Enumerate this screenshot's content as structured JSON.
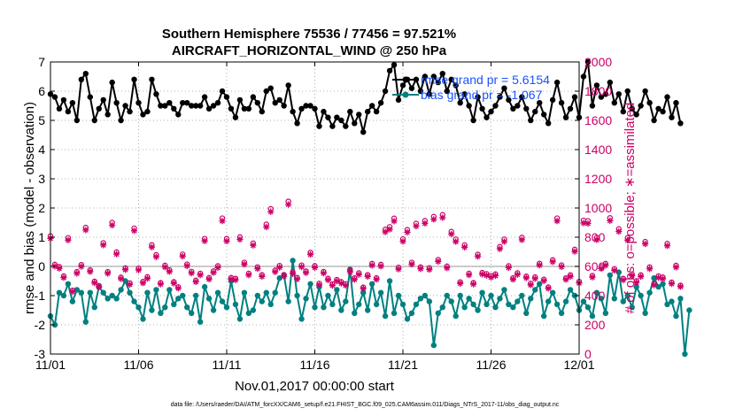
{
  "chart_data": {
    "type": "line",
    "title_line1": "Southern Hemisphere 75536 / 77456 = 97.521%",
    "title_line2": "AIRCRAFT_HORIZONTAL_WIND @ 250 hPa",
    "xlabel": "Nov.01,2017 00:00:00 start",
    "ylabel_left": "rmse and bias (model - observation)",
    "ylabel_right": "# of obs: o=possible; ∗=assimilated",
    "footer": "data file: /Users/raeder/DAI/ATM_forcXX/CAM6_setup/f.e21.FHIST_BGC.f09_025.CAM6assim.011/Diags_NTrS_2017-11/obs_diag_output.nc",
    "x_tick_labels": [
      "11/01",
      "11/06",
      "11/11",
      "11/16",
      "11/21",
      "11/26",
      "12/01"
    ],
    "x_tick_days": [
      0,
      5,
      10,
      15,
      20,
      25,
      30
    ],
    "xlim_days": [
      0,
      30
    ],
    "ylim_left": [
      -3,
      7
    ],
    "yticks_left": [
      "-3",
      "-2",
      "-1",
      "0",
      "1",
      "2",
      "3",
      "4",
      "5",
      "6",
      "7"
    ],
    "ylim_right": [
      0,
      2000
    ],
    "yticks_right": [
      "0",
      "200",
      "400",
      "600",
      "800",
      "1000",
      "1200",
      "1400",
      "1600",
      "1800",
      "2000"
    ],
    "time_step_days": 0.25,
    "legend": [
      {
        "label": "rmse grand pr = 5.6154",
        "color": "#000000"
      },
      {
        "label": "bias grand pr = -1.067",
        "color": "#008080"
      }
    ],
    "series": [
      {
        "name": "rmse",
        "color": "#000000",
        "axis": "left",
        "values": [
          5.9,
          5.8,
          5.4,
          5.7,
          5.3,
          5.6,
          5.0,
          6.4,
          6.6,
          5.8,
          5.0,
          5.4,
          5.7,
          5.2,
          6.3,
          5.6,
          5.0,
          5.5,
          5.3,
          6.4,
          5.6,
          5.2,
          5.3,
          6.4,
          5.9,
          5.5,
          5.5,
          5.6,
          5.4,
          5.2,
          5.6,
          5.6,
          5.5,
          5.5,
          5.5,
          5.8,
          5.4,
          5.5,
          5.6,
          6.0,
          5.8,
          5.4,
          5.1,
          5.7,
          5.4,
          5.4,
          5.8,
          5.6,
          5.3,
          6.0,
          6.1,
          5.6,
          5.7,
          5.5,
          6.2,
          5.3,
          4.9,
          5.4,
          5.5,
          5.5,
          5.4,
          4.8,
          5.3,
          5.1,
          4.8,
          5.1,
          5.0,
          4.8,
          5.3,
          4.9,
          5.2,
          4.6,
          5.3,
          5.5,
          5.3,
          5.6,
          6.0,
          6.7,
          6.9,
          5.7,
          6.2,
          6.4,
          6.1,
          6.4,
          6.0,
          6.5,
          5.9,
          6.5,
          6.3,
          6.6,
          6.0,
          6.4,
          6.2,
          5.6,
          5.9,
          5.5,
          5.0,
          5.8,
          5.4,
          5.1,
          5.3,
          5.5,
          5.8,
          6.1,
          5.7,
          5.4,
          5.5,
          5.8,
          5.4,
          5.0,
          5.3,
          5.6,
          5.2,
          4.9,
          5.7,
          6.3,
          5.6,
          5.1,
          5.4,
          5.8,
          5.1,
          6.5,
          7.0,
          5.5,
          6.2,
          5.8,
          5.9,
          6.3,
          5.6,
          5.9,
          5.3,
          6.0,
          5.4,
          5.2,
          5.5,
          6.0,
          5.6,
          5.0,
          5.4,
          5.3,
          5.8,
          5.1,
          5.6,
          4.9
        ]
      },
      {
        "name": "bias",
        "color": "#008080",
        "axis": "left",
        "values": [
          -1.7,
          -2.0,
          -0.9,
          -1.0,
          -0.6,
          -1.2,
          -0.8,
          -0.9,
          -1.9,
          -0.9,
          -1.4,
          -0.7,
          -0.9,
          -1.1,
          -1.0,
          -1.1,
          -0.8,
          -0.5,
          -0.9,
          -1.2,
          -1.4,
          -1.8,
          -0.9,
          -1.5,
          -0.8,
          -1.6,
          -1.4,
          -0.8,
          -1.3,
          -1.1,
          -1.0,
          -1.4,
          -1.6,
          -1.0,
          -1.9,
          -0.7,
          -1.1,
          -1.5,
          -0.9,
          -1.2,
          -1.4,
          -0.5,
          -1.3,
          -1.8,
          -0.9,
          -1.6,
          -1.5,
          -1.0,
          -1.2,
          -0.9,
          -1.3,
          -0.9,
          -0.4,
          -0.3,
          -1.2,
          0.2,
          -1.0,
          -1.8,
          -1.1,
          -0.6,
          -1.4,
          -0.7,
          -1.4,
          -1.0,
          -1.3,
          -0.8,
          -1.5,
          -1.2,
          -0.1,
          -1.6,
          -1.3,
          -0.9,
          -1.5,
          -0.6,
          -1.3,
          -0.9,
          -1.7,
          -0.5,
          -1.6,
          -1.0,
          -1.3,
          -1.8,
          -1.6,
          -1.3,
          -1.1,
          -1.0,
          -1.2,
          -2.7,
          -1.6,
          -1.4,
          -1.0,
          -1.2,
          -1.7,
          -1.0,
          -1.4,
          -1.1,
          -1.3,
          -1.5,
          -0.9,
          -1.3,
          -1.0,
          -1.4,
          -1.1,
          -0.8,
          -1.3,
          -1.4,
          -1.2,
          -1.0,
          -1.6,
          -1.1,
          -0.8,
          -0.6,
          -1.7,
          -1.2,
          -0.9,
          -1.3,
          -1.6,
          -1.2,
          -0.8,
          -1.0,
          -1.5,
          -1.2,
          -1.4,
          -1.7,
          -0.9,
          -1.1,
          -1.6,
          -0.3,
          -1.1,
          -0.2,
          -1.2,
          -1.0,
          -1.4,
          -0.7,
          -1.0,
          -1.6,
          -0.9,
          -0.4,
          -0.7,
          -0.6,
          -1.3,
          -1.2,
          -1.7,
          -1.1,
          -3.0,
          -1.5
        ]
      },
      {
        "name": "obs possible",
        "color": "#cc0066",
        "axis": "right",
        "marker": "circle",
        "values": [
          808,
          613,
          598,
          534,
          796,
          436,
          563,
          611,
          866,
          575,
          497,
          468,
          761,
          563,
          900,
          698,
          525,
          589,
          486,
          861,
          587,
          496,
          528,
          747,
          679,
          488,
          607,
          575,
          494,
          459,
          683,
          615,
          565,
          504,
          552,
          790,
          522,
          568,
          603,
          930,
          789,
          523,
          517,
          801,
          627,
          552,
          759,
          596,
          542,
          888,
          994,
          573,
          605,
          543,
          1045,
          561,
          523,
          608,
          567,
          695,
          604,
          483,
          564,
          517,
          479,
          509,
          494,
          480,
          573,
          520,
          555,
          457,
          542,
          619,
          521,
          613,
          853,
          871,
          929,
          593,
          787,
          851,
          627,
          894,
          595,
          913,
          590,
          941,
          646,
          953,
          601,
          838,
          786,
          493,
          746,
          552,
          488,
          682,
          557,
          549,
          536,
          547,
          735,
          786,
          603,
          521,
          555,
          798,
          532,
          483,
          527,
          620,
          511,
          458,
          644,
          930,
          609,
          520,
          541,
          716,
          496,
          915,
          912,
          537,
          798,
          597,
          619,
          932,
          584,
          856,
          517,
          795,
          547,
          500,
          541,
          769,
          595,
          482,
          534,
          526,
          756,
          491,
          606,
          470
        ]
      },
      {
        "name": "obs assimilated",
        "color": "#cc0066",
        "axis": "right",
        "marker": "star",
        "values": [
          792,
          601,
          586,
          523,
          780,
          427,
          552,
          599,
          849,
          564,
          487,
          459,
          746,
          552,
          882,
          684,
          515,
          577,
          476,
          844,
          575,
          486,
          517,
          732,
          665,
          478,
          595,
          564,
          484,
          450,
          669,
          603,
          554,
          494,
          541,
          774,
          512,
          557,
          591,
          911,
          773,
          513,
          507,
          785,
          614,
          541,
          744,
          584,
          531,
          870,
          974,
          562,
          593,
          532,
          1024,
          550,
          513,
          596,
          556,
          681,
          592,
          473,
          553,
          507,
          469,
          499,
          484,
          470,
          562,
          510,
          544,
          448,
          531,
          607,
          511,
          601,
          836,
          854,
          910,
          581,
          771,
          834,
          614,
          876,
          583,
          895,
          578,
          922,
          633,
          934,
          589,
          821,
          770,
          483,
          731,
          541,
          478,
          668,
          546,
          538,
          525,
          536,
          720,
          770,
          591,
          511,
          544,
          782,
          521,
          473,
          516,
          608,
          501,
          449,
          631,
          911,
          597,
          510,
          530,
          702,
          486,
          897,
          894,
          526,
          782,
          585,
          607,
          913,
          572,
          839,
          507,
          779,
          536,
          490,
          530,
          754,
          583,
          472,
          523,
          515,
          741,
          481,
          594,
          461
        ]
      }
    ]
  }
}
